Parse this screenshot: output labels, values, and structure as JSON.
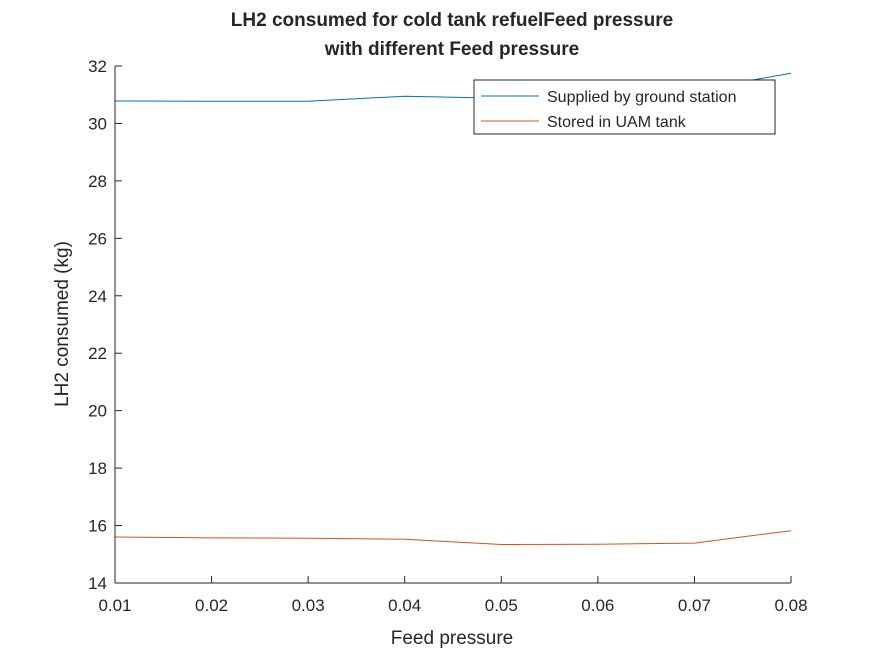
{
  "chart_data": {
    "type": "line",
    "title": [
      "LH2 consumed for cold tank refuelFeed pressure",
      "with different Feed pressure"
    ],
    "xlabel": "Feed pressure",
    "ylabel": "LH2 consumed (kg)",
    "xlim": [
      0.01,
      0.08
    ],
    "ylim": [
      14,
      32
    ],
    "xticks": [
      "0.01",
      "0.02",
      "0.03",
      "0.04",
      "0.05",
      "0.06",
      "0.07",
      "0.08"
    ],
    "yticks": [
      "14",
      "16",
      "18",
      "20",
      "22",
      "24",
      "26",
      "28",
      "30",
      "32"
    ],
    "x": [
      0.01,
      0.02,
      0.03,
      0.04,
      0.05,
      0.06,
      0.07,
      0.08
    ],
    "series": [
      {
        "name": "Supplied by ground station",
        "color": "#0072BD",
        "values": [
          30.78,
          30.77,
          30.77,
          30.95,
          30.88,
          30.9,
          31.15,
          31.75
        ]
      },
      {
        "name": "Stored in UAM tank",
        "color": "#D95319",
        "values": [
          15.6,
          15.57,
          15.56,
          15.52,
          15.34,
          15.35,
          15.39,
          15.82
        ]
      }
    ],
    "grid": false,
    "legend_position": "top-right"
  }
}
